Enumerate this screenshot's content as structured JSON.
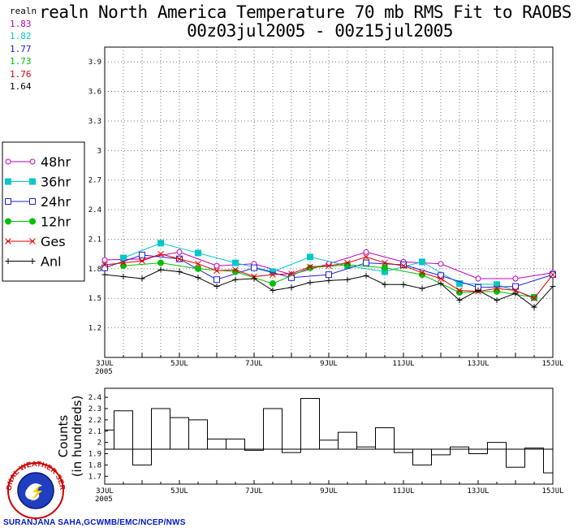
{
  "title": {
    "line1": "realn North America Temperature 70 mb RMS Fit to RAOBS",
    "line2": "00z03jul2005 - 00z15jul2005"
  },
  "stats": {
    "label": "realn",
    "entries": [
      {
        "value": "1.83",
        "color": "#c000c0"
      },
      {
        "value": "1.82",
        "color": "#00c8c8"
      },
      {
        "value": "1.77",
        "color": "#2020d0"
      },
      {
        "value": "1.73",
        "color": "#00c000"
      },
      {
        "value": "1.76",
        "color": "#e00000"
      },
      {
        "value": "1.64",
        "color": "#000000"
      }
    ]
  },
  "credit": "SURANJANA SAHA,GCWMB/EMC/NCEP/NWS",
  "logo_text": "NATIONAL WEATHER SERVICE",
  "chart_data": [
    {
      "type": "line",
      "title": "realn North America Temperature 70 mb RMS Fit to RAOBS",
      "x": [
        0,
        0.5,
        1,
        1.5,
        2,
        2.5,
        3,
        3.5,
        4,
        4.5,
        5,
        5.5,
        6,
        6.5,
        7,
        7.5,
        8,
        8.5,
        9,
        9.5,
        10,
        10.5,
        11,
        11.5,
        12
      ],
      "x_tick_labels": [
        "3JUL\n2005",
        "5JUL",
        "7JUL",
        "9JUL",
        "11JUL",
        "13JUL",
        "15JUL"
      ],
      "x_tick_positions": [
        0,
        2,
        4,
        6,
        8,
        10,
        12
      ],
      "ylim": [
        0.9,
        4.05
      ],
      "y_ticks": [
        "1.2",
        "1.5",
        "1.8",
        "2.1",
        "2.4",
        "2.7",
        "3",
        "3.3",
        "3.6",
        "3.9"
      ],
      "grid": true,
      "legend_placement": "left",
      "series": [
        {
          "name": "48hr",
          "color": "#c000c0",
          "marker": "open-circle",
          "values": [
            1.89,
            null,
            1.9,
            null,
            1.97,
            null,
            1.83,
            null,
            1.85,
            null,
            1.74,
            null,
            1.85,
            null,
            1.97,
            null,
            1.87,
            null,
            1.85,
            null,
            1.7,
            null,
            1.7,
            null,
            1.76
          ]
        },
        {
          "name": "36hr",
          "color": "#00c8c8",
          "marker": "filled-square",
          "values": [
            null,
            1.91,
            null,
            2.06,
            null,
            1.96,
            null,
            1.86,
            null,
            1.77,
            null,
            1.92,
            null,
            1.83,
            null,
            1.77,
            null,
            1.87,
            null,
            1.65,
            null,
            1.64,
            null,
            1.51,
            null
          ]
        },
        {
          "name": "24hr",
          "color": "#2020d0",
          "marker": "open-square",
          "values": [
            1.81,
            null,
            1.94,
            null,
            1.9,
            null,
            1.69,
            null,
            1.81,
            null,
            1.71,
            null,
            1.74,
            null,
            1.86,
            null,
            1.84,
            null,
            1.73,
            null,
            1.61,
            null,
            1.62,
            null,
            1.74
          ]
        },
        {
          "name": "12hr",
          "color": "#00c000",
          "marker": "filled-circle",
          "values": [
            null,
            1.83,
            null,
            1.86,
            null,
            1.8,
            null,
            1.77,
            null,
            1.65,
            null,
            1.81,
            null,
            1.84,
            null,
            1.81,
            null,
            1.74,
            null,
            1.56,
            null,
            1.57,
            null,
            1.51,
            null
          ]
        },
        {
          "name": "Ges",
          "color": "#e00000",
          "marker": "x",
          "values": [
            1.84,
            1.86,
            1.88,
            1.95,
            1.9,
            1.85,
            1.78,
            1.79,
            1.72,
            1.74,
            1.75,
            1.82,
            1.83,
            1.86,
            1.92,
            1.86,
            1.83,
            1.76,
            1.7,
            1.58,
            1.57,
            1.6,
            1.58,
            1.5,
            1.74
          ]
        },
        {
          "name": "Anl",
          "color": "#000000",
          "marker": "plus",
          "values": [
            1.74,
            1.72,
            1.7,
            1.79,
            1.77,
            1.71,
            1.62,
            1.69,
            1.7,
            1.58,
            1.61,
            1.66,
            1.68,
            1.69,
            1.73,
            1.64,
            1.64,
            1.6,
            1.65,
            1.48,
            1.58,
            1.48,
            1.55,
            1.41,
            1.62
          ]
        }
      ]
    },
    {
      "type": "bar",
      "ylabel": "Counts\n(in hundreds)",
      "ylim": [
        1.63,
        2.48
      ],
      "baseline": 1.94,
      "y_ticks": [
        "1.7",
        "1.8",
        "1.9",
        "2",
        "2.1",
        "2.2",
        "2.3",
        "2.4"
      ],
      "x_tick_labels": [
        "3JUL\n2005",
        "5JUL",
        "7JUL",
        "9JUL",
        "11JUL",
        "13JUL",
        "15JUL"
      ],
      "x_tick_positions": [
        0,
        2,
        4,
        6,
        8,
        10,
        12
      ],
      "bar_centers": [
        0,
        0.5,
        1,
        1.5,
        2,
        2.5,
        3,
        3.5,
        4,
        4.5,
        5,
        5.5,
        6,
        6.5,
        7,
        7.5,
        8,
        8.5,
        9,
        9.5,
        10,
        10.5,
        11,
        11.5,
        12
      ],
      "values": [
        2.11,
        2.28,
        1.8,
        2.3,
        2.22,
        2.2,
        2.03,
        2.03,
        1.93,
        2.3,
        1.91,
        2.39,
        2.02,
        2.09,
        1.96,
        2.13,
        1.91,
        1.8,
        1.89,
        1.96,
        1.9,
        2.0,
        1.78,
        1.95,
        1.73
      ]
    }
  ]
}
